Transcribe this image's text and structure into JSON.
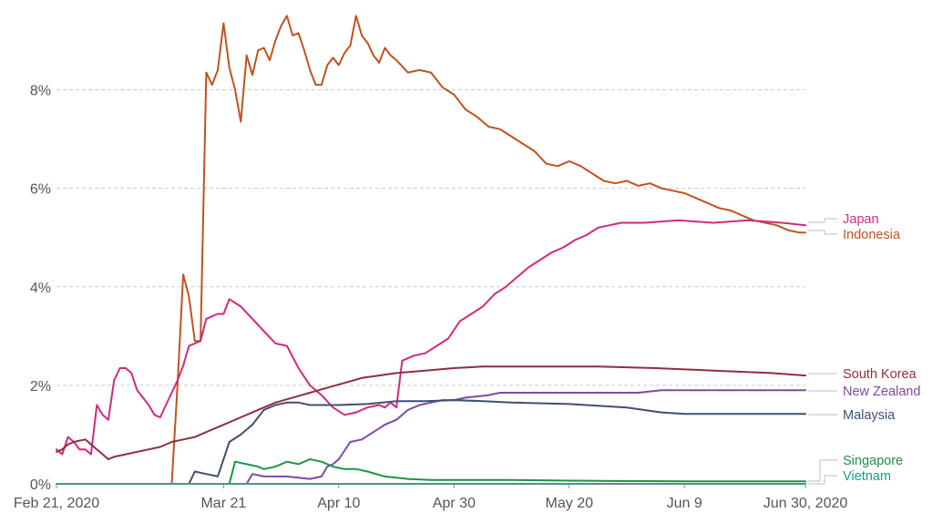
{
  "chart_data": {
    "type": "line",
    "title": "",
    "xlabel": "",
    "ylabel": "",
    "y_unit": "%",
    "grid": "horizontal dashed",
    "legend_placement": "right (labels at line ends)",
    "xlim": [
      "2020-02-21",
      "2020-06-30"
    ],
    "ylim": [
      0,
      9.6
    ],
    "x_tick_labels": [
      "Feb 21, 2020",
      "Mar 21",
      "Apr 10",
      "Apr 30",
      "May 20",
      "Jun 9",
      "Jun 30, 2020"
    ],
    "x_tick_dates": [
      "2020-02-21",
      "2020-03-21",
      "2020-04-10",
      "2020-04-30",
      "2020-05-20",
      "2020-06-09",
      "2020-06-30"
    ],
    "y_ticks": [
      0,
      2,
      4,
      6,
      8
    ],
    "y_tick_labels": [
      "0%",
      "2%",
      "4%",
      "6%",
      "8%"
    ],
    "series": [
      {
        "name": "Indonesia",
        "color": "#c0531f",
        "points": [
          [
            "2020-03-12",
            0
          ],
          [
            "2020-03-13",
            2.0
          ],
          [
            "2020-03-14",
            4.25
          ],
          [
            "2020-03-15",
            3.8
          ],
          [
            "2020-03-16",
            2.9
          ],
          [
            "2020-03-17",
            2.9
          ],
          [
            "2020-03-18",
            8.35
          ],
          [
            "2020-03-19",
            8.1
          ],
          [
            "2020-03-20",
            8.4
          ],
          [
            "2020-03-21",
            9.35
          ],
          [
            "2020-03-22",
            8.45
          ],
          [
            "2020-03-23",
            8.0
          ],
          [
            "2020-03-24",
            7.35
          ],
          [
            "2020-03-25",
            8.7
          ],
          [
            "2020-03-26",
            8.3
          ],
          [
            "2020-03-27",
            8.8
          ],
          [
            "2020-03-28",
            8.85
          ],
          [
            "2020-03-29",
            8.6
          ],
          [
            "2020-03-30",
            9.0
          ],
          [
            "2020-03-31",
            9.3
          ],
          [
            "2020-04-01",
            9.5
          ],
          [
            "2020-04-02",
            9.1
          ],
          [
            "2020-04-03",
            9.15
          ],
          [
            "2020-04-04",
            8.8
          ],
          [
            "2020-04-05",
            8.4
          ],
          [
            "2020-04-06",
            8.1
          ],
          [
            "2020-04-07",
            8.1
          ],
          [
            "2020-04-08",
            8.5
          ],
          [
            "2020-04-09",
            8.65
          ],
          [
            "2020-04-10",
            8.5
          ],
          [
            "2020-04-11",
            8.75
          ],
          [
            "2020-04-12",
            8.9
          ],
          [
            "2020-04-13",
            9.5
          ],
          [
            "2020-04-14",
            9.1
          ],
          [
            "2020-04-15",
            8.95
          ],
          [
            "2020-04-16",
            8.7
          ],
          [
            "2020-04-17",
            8.55
          ],
          [
            "2020-04-18",
            8.85
          ],
          [
            "2020-04-19",
            8.7
          ],
          [
            "2020-04-20",
            8.6
          ],
          [
            "2020-04-22",
            8.35
          ],
          [
            "2020-04-24",
            8.4
          ],
          [
            "2020-04-26",
            8.35
          ],
          [
            "2020-04-28",
            8.05
          ],
          [
            "2020-04-30",
            7.9
          ],
          [
            "2020-05-02",
            7.6
          ],
          [
            "2020-05-04",
            7.45
          ],
          [
            "2020-05-06",
            7.25
          ],
          [
            "2020-05-08",
            7.2
          ],
          [
            "2020-05-10",
            7.05
          ],
          [
            "2020-05-12",
            6.9
          ],
          [
            "2020-05-14",
            6.75
          ],
          [
            "2020-05-16",
            6.5
          ],
          [
            "2020-05-18",
            6.45
          ],
          [
            "2020-05-20",
            6.55
          ],
          [
            "2020-05-22",
            6.45
          ],
          [
            "2020-05-24",
            6.3
          ],
          [
            "2020-05-26",
            6.15
          ],
          [
            "2020-05-28",
            6.1
          ],
          [
            "2020-05-30",
            6.15
          ],
          [
            "2020-06-01",
            6.05
          ],
          [
            "2020-06-03",
            6.1
          ],
          [
            "2020-06-05",
            6.0
          ],
          [
            "2020-06-07",
            5.95
          ],
          [
            "2020-06-09",
            5.9
          ],
          [
            "2020-06-11",
            5.8
          ],
          [
            "2020-06-13",
            5.7
          ],
          [
            "2020-06-15",
            5.6
          ],
          [
            "2020-06-17",
            5.55
          ],
          [
            "2020-06-19",
            5.45
          ],
          [
            "2020-06-21",
            5.35
          ],
          [
            "2020-06-23",
            5.3
          ],
          [
            "2020-06-25",
            5.25
          ],
          [
            "2020-06-27",
            5.15
          ],
          [
            "2020-06-29",
            5.1
          ],
          [
            "2020-06-30",
            5.1
          ]
        ]
      },
      {
        "name": "Japan",
        "color": "#d12a7e",
        "points": [
          [
            "2020-02-21",
            0.7
          ],
          [
            "2020-02-22",
            0.6
          ],
          [
            "2020-02-23",
            0.95
          ],
          [
            "2020-02-24",
            0.85
          ],
          [
            "2020-02-25",
            0.7
          ],
          [
            "2020-02-26",
            0.7
          ],
          [
            "2020-02-27",
            0.6
          ],
          [
            "2020-02-28",
            1.6
          ],
          [
            "2020-02-29",
            1.4
          ],
          [
            "2020-03-01",
            1.3
          ],
          [
            "2020-03-02",
            2.1
          ],
          [
            "2020-03-03",
            2.35
          ],
          [
            "2020-03-04",
            2.35
          ],
          [
            "2020-03-05",
            2.25
          ],
          [
            "2020-03-06",
            1.9
          ],
          [
            "2020-03-08",
            1.6
          ],
          [
            "2020-03-09",
            1.4
          ],
          [
            "2020-03-10",
            1.35
          ],
          [
            "2020-03-11",
            1.6
          ],
          [
            "2020-03-13",
            2.1
          ],
          [
            "2020-03-14",
            2.4
          ],
          [
            "2020-03-15",
            2.8
          ],
          [
            "2020-03-16",
            2.85
          ],
          [
            "2020-03-17",
            2.9
          ],
          [
            "2020-03-18",
            3.35
          ],
          [
            "2020-03-19",
            3.4
          ],
          [
            "2020-03-20",
            3.45
          ],
          [
            "2020-03-21",
            3.45
          ],
          [
            "2020-03-22",
            3.75
          ],
          [
            "2020-03-24",
            3.6
          ],
          [
            "2020-03-26",
            3.35
          ],
          [
            "2020-03-28",
            3.1
          ],
          [
            "2020-03-30",
            2.85
          ],
          [
            "2020-04-01",
            2.8
          ],
          [
            "2020-04-03",
            2.35
          ],
          [
            "2020-04-05",
            2.0
          ],
          [
            "2020-04-07",
            1.8
          ],
          [
            "2020-04-09",
            1.55
          ],
          [
            "2020-04-11",
            1.4
          ],
          [
            "2020-04-13",
            1.45
          ],
          [
            "2020-04-15",
            1.55
          ],
          [
            "2020-04-17",
            1.6
          ],
          [
            "2020-04-18",
            1.55
          ],
          [
            "2020-04-19",
            1.65
          ],
          [
            "2020-04-20",
            1.55
          ],
          [
            "2020-04-21",
            2.5
          ],
          [
            "2020-04-23",
            2.6
          ],
          [
            "2020-04-25",
            2.65
          ],
          [
            "2020-04-27",
            2.8
          ],
          [
            "2020-04-29",
            2.95
          ],
          [
            "2020-05-01",
            3.3
          ],
          [
            "2020-05-03",
            3.45
          ],
          [
            "2020-05-05",
            3.6
          ],
          [
            "2020-05-07",
            3.85
          ],
          [
            "2020-05-09",
            4.0
          ],
          [
            "2020-05-11",
            4.2
          ],
          [
            "2020-05-13",
            4.4
          ],
          [
            "2020-05-15",
            4.55
          ],
          [
            "2020-05-17",
            4.7
          ],
          [
            "2020-05-19",
            4.8
          ],
          [
            "2020-05-21",
            4.95
          ],
          [
            "2020-05-23",
            5.05
          ],
          [
            "2020-05-25",
            5.2
          ],
          [
            "2020-05-27",
            5.25
          ],
          [
            "2020-05-29",
            5.3
          ],
          [
            "2020-06-02",
            5.3
          ],
          [
            "2020-06-08",
            5.35
          ],
          [
            "2020-06-14",
            5.3
          ],
          [
            "2020-06-20",
            5.35
          ],
          [
            "2020-06-26",
            5.3
          ],
          [
            "2020-06-30",
            5.25
          ]
        ]
      },
      {
        "name": "South Korea",
        "color": "#8e2f3e",
        "points": [
          [
            "2020-02-21",
            0.65
          ],
          [
            "2020-02-22",
            0.7
          ],
          [
            "2020-02-23",
            0.8
          ],
          [
            "2020-02-24",
            0.85
          ],
          [
            "2020-02-26",
            0.9
          ],
          [
            "2020-02-27",
            0.8
          ],
          [
            "2020-02-29",
            0.6
          ],
          [
            "2020-03-01",
            0.5
          ],
          [
            "2020-03-02",
            0.55
          ],
          [
            "2020-03-04",
            0.6
          ],
          [
            "2020-03-06",
            0.65
          ],
          [
            "2020-03-08",
            0.7
          ],
          [
            "2020-03-10",
            0.75
          ],
          [
            "2020-03-12",
            0.85
          ],
          [
            "2020-03-14",
            0.9
          ],
          [
            "2020-03-16",
            0.95
          ],
          [
            "2020-03-18",
            1.05
          ],
          [
            "2020-03-20",
            1.15
          ],
          [
            "2020-03-22",
            1.25
          ],
          [
            "2020-03-24",
            1.35
          ],
          [
            "2020-03-26",
            1.45
          ],
          [
            "2020-03-28",
            1.55
          ],
          [
            "2020-03-30",
            1.65
          ],
          [
            "2020-04-02",
            1.75
          ],
          [
            "2020-04-05",
            1.85
          ],
          [
            "2020-04-08",
            1.95
          ],
          [
            "2020-04-11",
            2.05
          ],
          [
            "2020-04-14",
            2.15
          ],
          [
            "2020-04-17",
            2.2
          ],
          [
            "2020-04-20",
            2.25
          ],
          [
            "2020-04-25",
            2.3
          ],
          [
            "2020-04-30",
            2.35
          ],
          [
            "2020-05-05",
            2.38
          ],
          [
            "2020-05-15",
            2.38
          ],
          [
            "2020-05-25",
            2.38
          ],
          [
            "2020-06-04",
            2.35
          ],
          [
            "2020-06-14",
            2.3
          ],
          [
            "2020-06-24",
            2.25
          ],
          [
            "2020-06-30",
            2.2
          ]
        ]
      },
      {
        "name": "New Zealand",
        "color": "#7e4aa3",
        "points": [
          [
            "2020-03-25",
            0
          ],
          [
            "2020-03-26",
            0.2
          ],
          [
            "2020-03-28",
            0.15
          ],
          [
            "2020-03-30",
            0.15
          ],
          [
            "2020-04-01",
            0.15
          ],
          [
            "2020-04-05",
            0.1
          ],
          [
            "2020-04-07",
            0.15
          ],
          [
            "2020-04-08",
            0.35
          ],
          [
            "2020-04-09",
            0.4
          ],
          [
            "2020-04-10",
            0.5
          ],
          [
            "2020-04-12",
            0.85
          ],
          [
            "2020-04-14",
            0.9
          ],
          [
            "2020-04-16",
            1.05
          ],
          [
            "2020-04-18",
            1.2
          ],
          [
            "2020-04-20",
            1.3
          ],
          [
            "2020-04-22",
            1.5
          ],
          [
            "2020-04-24",
            1.6
          ],
          [
            "2020-04-26",
            1.65
          ],
          [
            "2020-04-28",
            1.7
          ],
          [
            "2020-04-30",
            1.7
          ],
          [
            "2020-05-02",
            1.75
          ],
          [
            "2020-05-06",
            1.8
          ],
          [
            "2020-05-08",
            1.85
          ],
          [
            "2020-05-20",
            1.85
          ],
          [
            "2020-06-01",
            1.85
          ],
          [
            "2020-06-05",
            1.9
          ],
          [
            "2020-06-20",
            1.9
          ],
          [
            "2020-06-30",
            1.9
          ]
        ]
      },
      {
        "name": "Malaysia",
        "color": "#3f4f73",
        "points": [
          [
            "2020-03-15",
            0
          ],
          [
            "2020-03-16",
            0.25
          ],
          [
            "2020-03-18",
            0.2
          ],
          [
            "2020-03-20",
            0.15
          ],
          [
            "2020-03-21",
            0.5
          ],
          [
            "2020-03-22",
            0.85
          ],
          [
            "2020-03-24",
            1.0
          ],
          [
            "2020-03-26",
            1.2
          ],
          [
            "2020-03-28",
            1.5
          ],
          [
            "2020-03-30",
            1.6
          ],
          [
            "2020-04-01",
            1.65
          ],
          [
            "2020-04-03",
            1.65
          ],
          [
            "2020-04-05",
            1.6
          ],
          [
            "2020-04-10",
            1.6
          ],
          [
            "2020-04-15",
            1.62
          ],
          [
            "2020-04-20",
            1.68
          ],
          [
            "2020-04-25",
            1.68
          ],
          [
            "2020-04-30",
            1.7
          ],
          [
            "2020-05-05",
            1.68
          ],
          [
            "2020-05-10",
            1.65
          ],
          [
            "2020-05-20",
            1.62
          ],
          [
            "2020-05-30",
            1.55
          ],
          [
            "2020-06-05",
            1.45
          ],
          [
            "2020-06-09",
            1.42
          ],
          [
            "2020-06-20",
            1.42
          ],
          [
            "2020-06-30",
            1.42
          ]
        ]
      },
      {
        "name": "Singapore",
        "color": "#1e9445",
        "points": [
          [
            "2020-03-22",
            0
          ],
          [
            "2020-03-23",
            0.45
          ],
          [
            "2020-03-25",
            0.4
          ],
          [
            "2020-03-27",
            0.35
          ],
          [
            "2020-03-28",
            0.3
          ],
          [
            "2020-03-30",
            0.35
          ],
          [
            "2020-04-01",
            0.45
          ],
          [
            "2020-04-03",
            0.4
          ],
          [
            "2020-04-05",
            0.5
          ],
          [
            "2020-04-07",
            0.45
          ],
          [
            "2020-04-09",
            0.35
          ],
          [
            "2020-04-11",
            0.3
          ],
          [
            "2020-04-13",
            0.3
          ],
          [
            "2020-04-15",
            0.25
          ],
          [
            "2020-04-18",
            0.15
          ],
          [
            "2020-04-22",
            0.1
          ],
          [
            "2020-04-26",
            0.08
          ],
          [
            "2020-05-10",
            0.08
          ],
          [
            "2020-05-25",
            0.06
          ],
          [
            "2020-06-10",
            0.05
          ],
          [
            "2020-06-30",
            0.05
          ]
        ]
      },
      {
        "name": "Vietnam",
        "color": "#1b9a86",
        "points": [
          [
            "2020-02-21",
            0
          ],
          [
            "2020-06-30",
            0
          ]
        ]
      }
    ]
  },
  "legend": {
    "japan": "Japan",
    "indonesia": "Indonesia",
    "south_korea": "South Korea",
    "new_zealand": "New Zealand",
    "malaysia": "Malaysia",
    "singapore": "Singapore",
    "vietnam": "Vietnam",
    "colors": {
      "japan": "#d12a7e",
      "indonesia": "#c0531f",
      "south_korea": "#8e2f3e",
      "new_zealand": "#7e4aa3",
      "malaysia": "#3f4f73",
      "singapore": "#1e9445",
      "vietnam": "#1b9a86"
    }
  }
}
